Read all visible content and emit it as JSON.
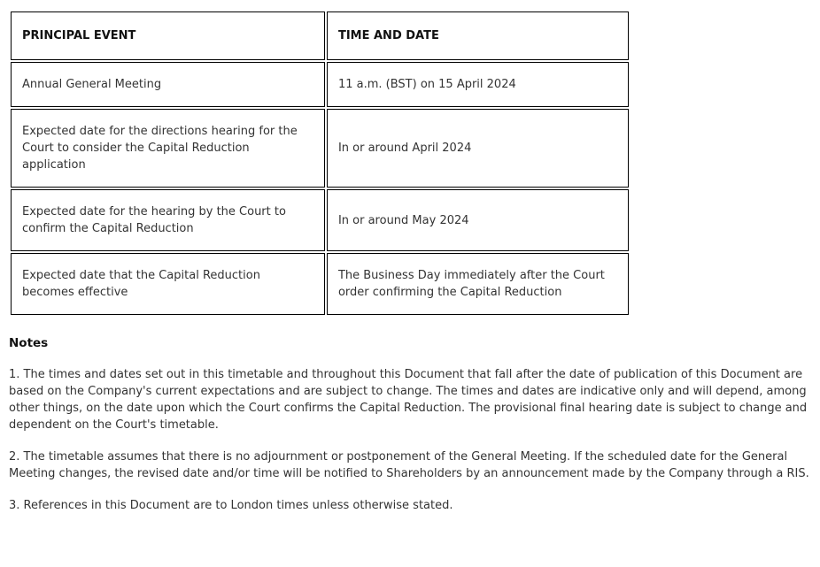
{
  "table": {
    "headers": [
      "PRINCIPAL EVENT",
      "TIME AND DATE"
    ],
    "rows": [
      {
        "event": "Annual General Meeting",
        "time": "11 a.m. (BST) on 15 April 2024"
      },
      {
        "event": "Expected date for the directions hearing for the Court to consider the Capital Reduction application",
        "time": "In or around April 2024"
      },
      {
        "event": "Expected date for the hearing by the Court to confirm the Capital Reduction",
        "time": "In or around May 2024"
      },
      {
        "event": "Expected date that the Capital Reduction becomes effective",
        "time": "The Business Day immediately after the Court order confirming the Capital Reduction"
      }
    ]
  },
  "notes": {
    "heading": "Notes",
    "items": [
      "1. The times and dates set out in this timetable and throughout this Document that fall after the date of publication of this Document are based on the Company's current expectations and are subject to change. The times and dates are indicative only and will depend, among other things, on the date upon which the Court confirms the Capital Reduction. The provisional final hearing date is subject to change and dependent on the Court's timetable.",
      "2. The timetable assumes that there is no adjournment or postponement of the General Meeting. If the scheduled date for the General Meeting changes, the revised date and/or time will be notified to Shareholders by an announcement made by the Company through a RIS.",
      "3. References in this Document are to London times unless otherwise stated."
    ]
  },
  "colors": {
    "text": "#333333",
    "heading_text": "#111111",
    "table_border": "#000000",
    "background": "#ffffff"
  }
}
